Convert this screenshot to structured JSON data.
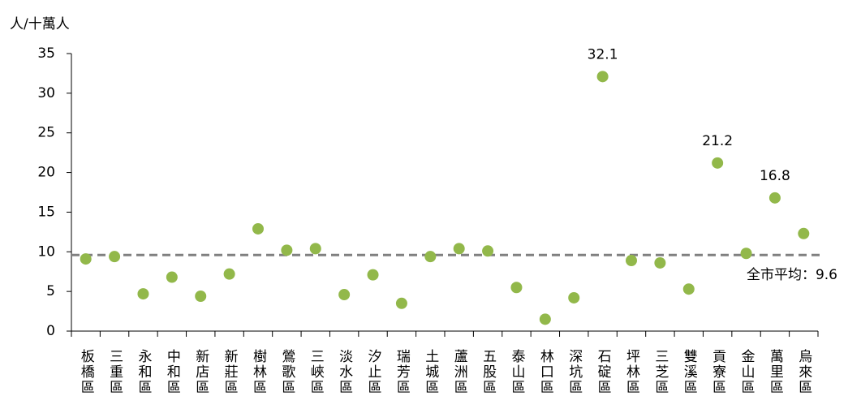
{
  "chart_data": {
    "type": "scatter",
    "y_axis_label": "人/十萬人",
    "categories": [
      "板橋區",
      "三重區",
      "永和區",
      "中和區",
      "新店區",
      "新莊區",
      "樹林區",
      "鶯歌區",
      "三峽區",
      "淡水區",
      "汐止區",
      "瑞芳區",
      "土城區",
      "蘆洲區",
      "五股區",
      "泰山區",
      "林口區",
      "深坑區",
      "石碇區",
      "坪林區",
      "三芝區",
      "雙溪區",
      "貢寮區",
      "金山區",
      "萬里區",
      "烏來區"
    ],
    "values": [
      9.1,
      9.4,
      4.7,
      6.8,
      4.4,
      7.2,
      12.9,
      10.2,
      10.4,
      4.6,
      7.1,
      3.5,
      9.4,
      10.4,
      10.1,
      5.5,
      1.5,
      4.2,
      32.1,
      8.9,
      8.6,
      5.3,
      21.2,
      9.8,
      16.8,
      12.3
    ],
    "value_labels": [
      null,
      null,
      null,
      null,
      null,
      null,
      null,
      null,
      null,
      null,
      null,
      null,
      null,
      null,
      null,
      null,
      null,
      null,
      "32.1",
      null,
      null,
      null,
      "21.2",
      null,
      "16.8",
      null
    ],
    "color": "#92b84a",
    "ylim": [
      0,
      35
    ],
    "yticks": [
      0,
      5,
      10,
      15,
      20,
      25,
      30,
      35
    ],
    "reference_line": {
      "value": 9.6,
      "label": "全市平均：9.6",
      "color": "#808080"
    }
  }
}
